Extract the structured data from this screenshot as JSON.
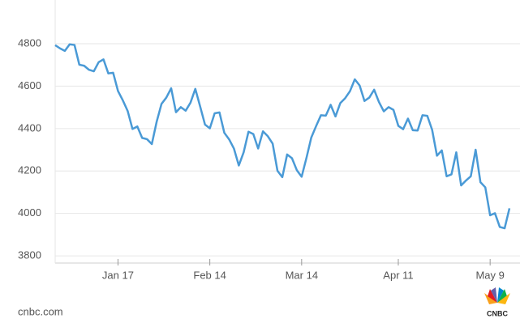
{
  "chart_data": {
    "type": "line",
    "categories": [
      null,
      null,
      null,
      null,
      null,
      null,
      null,
      null,
      null,
      null,
      null,
      null,
      null,
      "Jan 17",
      null,
      null,
      null,
      null,
      null,
      null,
      null,
      null,
      null,
      null,
      null,
      null,
      null,
      null,
      null,
      null,
      null,
      null,
      "Feb 14",
      null,
      null,
      null,
      null,
      null,
      null,
      null,
      null,
      null,
      null,
      null,
      null,
      null,
      null,
      null,
      null,
      null,
      null,
      "Mar 14",
      null,
      null,
      null,
      null,
      null,
      null,
      null,
      null,
      null,
      null,
      null,
      null,
      null,
      null,
      null,
      null,
      null,
      null,
      null,
      "Apr 11",
      null,
      null,
      null,
      null,
      null,
      null,
      null,
      null,
      null,
      null,
      null,
      null,
      null,
      null,
      null,
      null,
      null,
      null,
      "May 9",
      null,
      null,
      null,
      null
    ],
    "values": [
      4793,
      4778,
      4766,
      4797,
      4794,
      4701,
      4696,
      4677,
      4670,
      4713,
      4726,
      4660,
      4663,
      4577,
      4533,
      4483,
      4398,
      4410,
      4356,
      4350,
      4327,
      4432,
      4516,
      4546,
      4590,
      4477,
      4501,
      4484,
      4522,
      4587,
      4504,
      4419,
      4401,
      4472,
      4476,
      4380,
      4349,
      4305,
      4226,
      4288,
      4385,
      4374,
      4306,
      4387,
      4364,
      4329,
      4201,
      4171,
      4278,
      4260,
      4204,
      4173,
      4262,
      4358,
      4412,
      4463,
      4461,
      4512,
      4457,
      4520,
      4543,
      4576,
      4632,
      4603,
      4530,
      4546,
      4583,
      4525,
      4481,
      4501,
      4488,
      4413,
      4397,
      4447,
      4392,
      4391,
      4463,
      4460,
      4394,
      4272,
      4297,
      4175,
      4184,
      4288,
      4132,
      4155,
      4175,
      4300,
      4147,
      4123,
      3991,
      4001,
      3936,
      3930,
      4024
    ],
    "color": "#4a9ad6",
    "ylim": [
      3766,
      5006
    ],
    "yticks": [
      3800,
      4000,
      4200,
      4400,
      4600,
      4800
    ],
    "grid": true,
    "source": "cnbc.com",
    "logo_text": "CNBC"
  }
}
